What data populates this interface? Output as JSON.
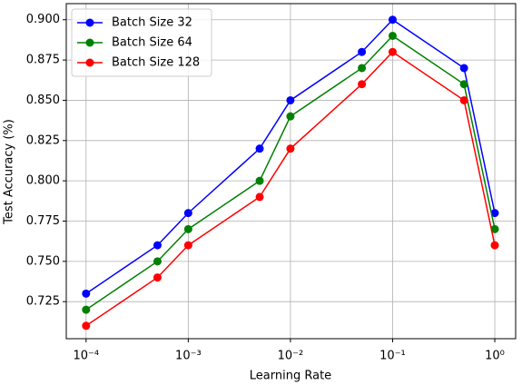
{
  "chart_data": {
    "type": "line",
    "x": [
      0.0001,
      0.0005,
      0.001,
      0.005,
      0.01,
      0.05,
      0.1,
      0.5,
      1
    ],
    "series": [
      {
        "name": "Batch Size 32",
        "color": "#0000ff",
        "values": [
          0.73,
          0.76,
          0.78,
          0.82,
          0.85,
          0.88,
          0.9,
          0.87,
          0.78
        ]
      },
      {
        "name": "Batch Size 64",
        "color": "#008000",
        "values": [
          0.72,
          0.75,
          0.77,
          0.8,
          0.84,
          0.87,
          0.89,
          0.86,
          0.77
        ]
      },
      {
        "name": "Batch Size 128",
        "color": "#ff0000",
        "values": [
          0.71,
          0.74,
          0.76,
          0.79,
          0.82,
          0.86,
          0.88,
          0.85,
          0.76
        ]
      }
    ],
    "xlabel": "Learning Rate",
    "ylabel": "Test Accuracy (%)",
    "xscale": "log",
    "xlim": [
      6.4e-05,
      1.6
    ],
    "xticks": [
      {
        "value": 0.0001,
        "label": "10⁻⁴"
      },
      {
        "value": 0.001,
        "label": "10⁻³"
      },
      {
        "value": 0.01,
        "label": "10⁻²"
      },
      {
        "value": 0.1,
        "label": "10⁻¹"
      },
      {
        "value": 1,
        "label": "10⁰"
      }
    ],
    "ylim": [
      0.702,
      0.91
    ],
    "yticks": [
      0.725,
      {
        "value": 0.75,
        "label": "0.750"
      },
      0.775,
      {
        "value": 0.8,
        "label": "0.800"
      },
      0.825,
      {
        "value": 0.85,
        "label": "0.850"
      },
      0.875,
      {
        "value": 0.9,
        "label": "0.900"
      }
    ],
    "grid": true,
    "legend": "upper left"
  }
}
